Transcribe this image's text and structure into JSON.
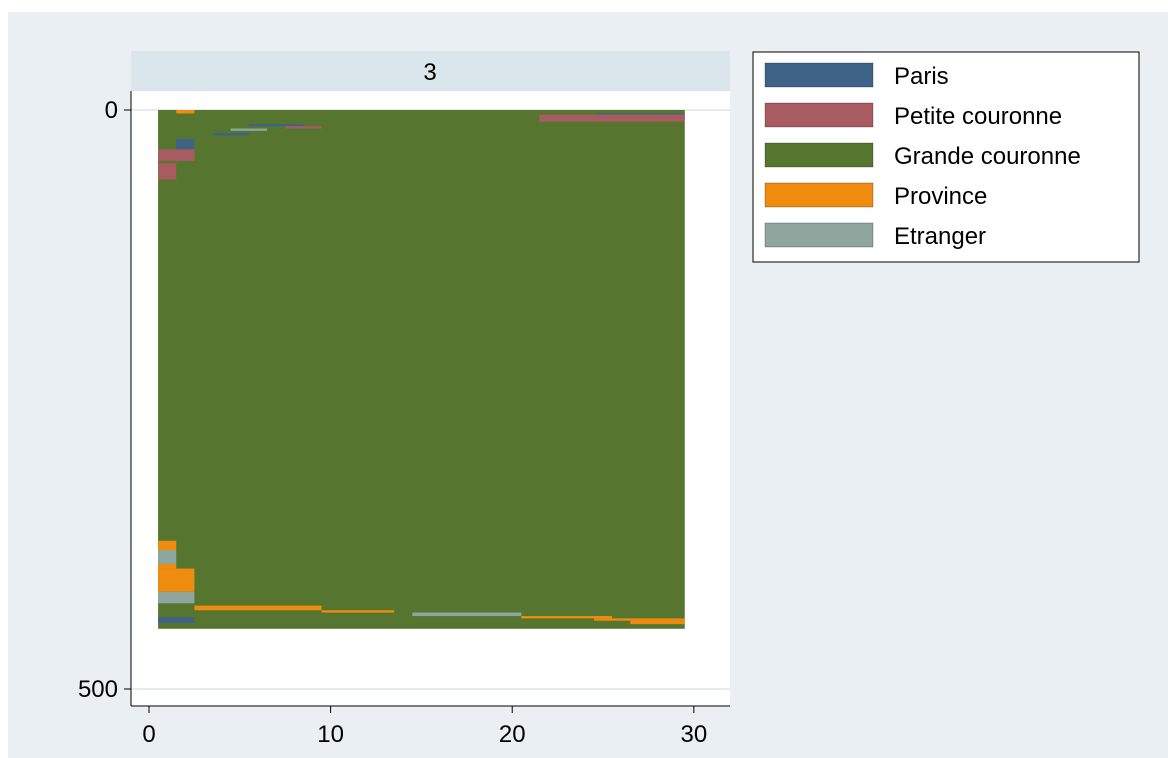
{
  "chart_data": {
    "type": "heatmap",
    "subtype": "sequence-index-plot",
    "panel_title": "3",
    "xlim": [
      0,
      31
    ],
    "ylim": [
      500,
      0
    ],
    "x_ticks": [
      "0",
      "10",
      "20",
      "30"
    ],
    "y_ticks": [
      "0",
      "500"
    ],
    "sequence_count": 448,
    "sequence_length": 29,
    "states": [
      {
        "name": "Paris",
        "color": "#3f6287"
      },
      {
        "name": "Petite couronne",
        "color": "#a85c61"
      },
      {
        "name": "Grande couronne",
        "color": "#56762f"
      },
      {
        "name": "Province",
        "color": "#ef8c10"
      },
      {
        "name": "Etranger",
        "color": "#8fa69e"
      }
    ],
    "legend_position": "right",
    "background_color": "#e9eff2",
    "strip_color": "#dbe5ec",
    "bands": [
      {
        "rows": [
          0,
          3
        ],
        "x": [
          1,
          2
        ],
        "state": "Province"
      },
      {
        "rows": [
          3,
          8
        ],
        "x": [
          24,
          29
        ],
        "state": "Paris"
      },
      {
        "rows": [
          4,
          10
        ],
        "x": [
          21,
          29
        ],
        "state": "Petite couronne"
      },
      {
        "rows": [
          12,
          14
        ],
        "x": [
          5,
          8
        ],
        "state": "Paris"
      },
      {
        "rows": [
          14,
          16
        ],
        "x": [
          7,
          9
        ],
        "state": "Petite couronne"
      },
      {
        "rows": [
          16,
          18
        ],
        "x": [
          4,
          6
        ],
        "state": "Etranger"
      },
      {
        "rows": [
          20,
          22
        ],
        "x": [
          3,
          5
        ],
        "state": "Paris"
      },
      {
        "rows": [
          25,
          34
        ],
        "x": [
          1,
          2
        ],
        "state": "Paris"
      },
      {
        "rows": [
          34,
          44
        ],
        "x": [
          0,
          2
        ],
        "state": "Petite couronne"
      },
      {
        "rows": [
          46,
          60
        ],
        "x": [
          0,
          1
        ],
        "state": "Petite couronne"
      },
      {
        "rows": [
          372,
          380
        ],
        "x": [
          0,
          1
        ],
        "state": "Province"
      },
      {
        "rows": [
          380,
          392
        ],
        "x": [
          0,
          1
        ],
        "state": "Etranger"
      },
      {
        "rows": [
          392,
          396
        ],
        "x": [
          0,
          1
        ],
        "state": "Province"
      },
      {
        "rows": [
          396,
          416
        ],
        "x": [
          0,
          2
        ],
        "state": "Province"
      },
      {
        "rows": [
          416,
          426
        ],
        "x": [
          0,
          2
        ],
        "state": "Etranger"
      },
      {
        "rows": [
          428,
          432
        ],
        "x": [
          2,
          9
        ],
        "state": "Province"
      },
      {
        "rows": [
          432,
          434
        ],
        "x": [
          9,
          13
        ],
        "state": "Province"
      },
      {
        "rows": [
          434,
          437
        ],
        "x": [
          14,
          20
        ],
        "state": "Etranger"
      },
      {
        "rows": [
          437,
          439
        ],
        "x": [
          20,
          25
        ],
        "state": "Province"
      },
      {
        "rows": [
          439,
          441
        ],
        "x": [
          24,
          29
        ],
        "state": "Province"
      },
      {
        "rows": [
          441,
          444
        ],
        "x": [
          26,
          29
        ],
        "state": "Province"
      },
      {
        "rows": [
          438,
          443
        ],
        "x": [
          0,
          2
        ],
        "state": "Paris"
      }
    ]
  },
  "legend": {
    "items": [
      "Paris",
      "Petite couronne",
      "Grande couronne",
      "Province",
      "Etranger"
    ]
  }
}
